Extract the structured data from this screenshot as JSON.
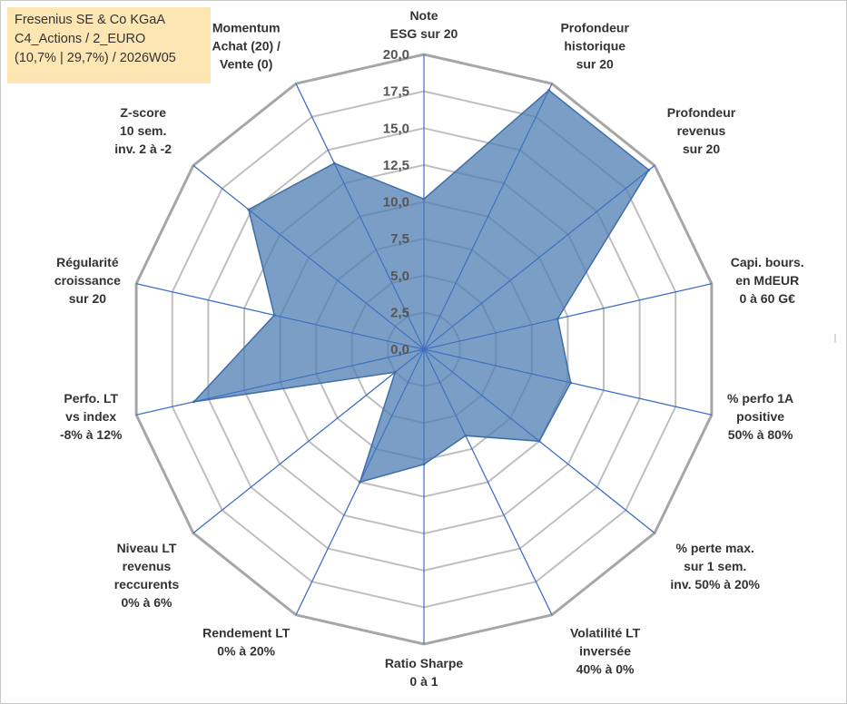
{
  "info_box": {
    "line1": "Fresenius SE & Co KGaA",
    "line2": "C4_Actions / 2_EURO",
    "line3": "(10,7% | 29,7%) / 2026W05"
  },
  "colors": {
    "fill": "#4f7db3",
    "edge": "#3f6ea8",
    "axis": "#3a6ec7",
    "grid": "#bfbfbf",
    "grid_outer": "#a6a6a6",
    "info_bg": "#fde6b4"
  },
  "chart_data": {
    "type": "radar",
    "title": "Fresenius SE & Co KGaA",
    "r_range": [
      0,
      20
    ],
    "r_ticks": [
      0,
      2.5,
      5,
      7.5,
      10,
      12.5,
      15,
      17.5,
      20
    ],
    "r_tick_labels": [
      "0,0",
      "2,5",
      "5,0",
      "7,5",
      "10,0",
      "12,5",
      "15,0",
      "17,5",
      "20,0"
    ],
    "axes": [
      {
        "label": [
          "Note",
          "ESG sur 20"
        ],
        "value": 10.2
      },
      {
        "label": [
          "Profondeur",
          "historique",
          "sur 20"
        ],
        "value": 19.5
      },
      {
        "label": [
          "Profondeur",
          "revenus",
          "sur 20"
        ],
        "value": 19.5
      },
      {
        "label": [
          "Capi. bours.",
          "en MdEUR",
          "0 à 60 G€"
        ],
        "value": 9.3
      },
      {
        "label": [
          "% perfo 1A",
          "positive",
          "50% à 80%"
        ],
        "value": 10.2
      },
      {
        "label": [
          "% perte max.",
          "sur 1 sem.",
          "inv. 50% à 20%"
        ],
        "value": 10.0
      },
      {
        "label": [
          "Volatilité LT",
          "inversée",
          "40% à 0%"
        ],
        "value": 6.5
      },
      {
        "label": [
          "Ratio Sharpe",
          "0 à 1"
        ],
        "value": 7.8
      },
      {
        "label": [
          "Rendement LT",
          "0% à 20%"
        ],
        "value": 10.0
      },
      {
        "label": [
          "Niveau LT",
          "revenus",
          "reccurents",
          "0% à 6%"
        ],
        "value": 2.5
      },
      {
        "label": [
          "Perfo. LT",
          "vs index",
          "-8% à 12%"
        ],
        "value": 16.0
      },
      {
        "label": [
          "Régularité",
          "croissance",
          "sur 20"
        ],
        "value": 10.4
      },
      {
        "label": [
          "Z-score",
          "10 sem.",
          "inv. 2 à -2"
        ],
        "value": 15.2
      },
      {
        "label": [
          "Momentum",
          "Achat (20) /",
          "Vente (0)"
        ],
        "value": 14.0
      }
    ]
  }
}
